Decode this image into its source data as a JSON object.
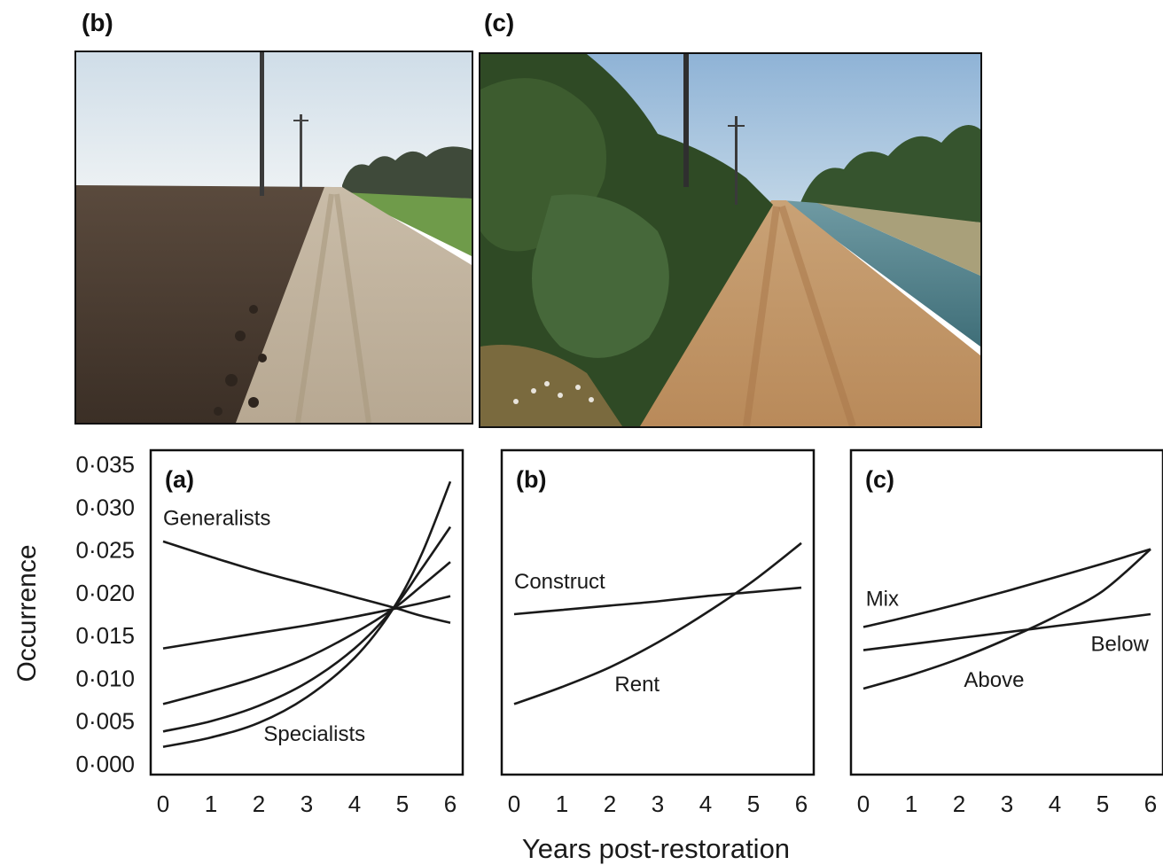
{
  "photos": [
    {
      "label": "(b)"
    },
    {
      "label": "(c)"
    }
  ],
  "ylabel": "Occurrence",
  "xlabel": "Years post-restoration",
  "colors": {
    "line": "#1a1a1a",
    "frame": "#111111"
  },
  "chart_data": [
    {
      "type": "line",
      "panel_label": "(a)",
      "xlabel": "Years post-restoration",
      "ylabel": "Occurrence",
      "xlim": [
        0,
        6
      ],
      "ylim": [
        0,
        0.035
      ],
      "xticks": [
        0,
        1,
        2,
        3,
        4,
        5,
        6
      ],
      "yticks": [
        "0·000",
        "0·005",
        "0·010",
        "0·015",
        "0·020",
        "0·025",
        "0·030",
        "0·035"
      ],
      "x": [
        0,
        1,
        2,
        3,
        4,
        4.8,
        5.4,
        6
      ],
      "series": [
        {
          "values": [
            0.026,
            0.0242,
            0.0225,
            0.021,
            0.0195,
            0.0183,
            0.0173,
            0.0165
          ]
        },
        {
          "values": [
            0.0135,
            0.0144,
            0.0153,
            0.0162,
            0.0172,
            0.0181,
            0.0188,
            0.0196
          ]
        },
        {
          "values": [
            0.007,
            0.0085,
            0.0102,
            0.0124,
            0.0153,
            0.0181,
            0.0208,
            0.0236
          ]
        },
        {
          "values": [
            0.0038,
            0.005,
            0.0068,
            0.0095,
            0.0135,
            0.0181,
            0.0228,
            0.0277
          ]
        },
        {
          "values": [
            0.002,
            0.0031,
            0.0048,
            0.0078,
            0.0124,
            0.0181,
            0.0245,
            0.033
          ]
        }
      ],
      "annotations": [
        {
          "text": "Generalists",
          "x": 0,
          "y": 0.0279
        },
        {
          "text": "Specialists",
          "x": 2.1,
          "y": 0.0027
        }
      ]
    },
    {
      "type": "line",
      "panel_label": "(b)",
      "xlim": [
        0,
        6
      ],
      "ylim": [
        0,
        0.035
      ],
      "xticks": [
        0,
        1,
        2,
        3,
        4,
        5,
        6
      ],
      "x": [
        0,
        1,
        2,
        3,
        4,
        5,
        6
      ],
      "series": [
        {
          "values": [
            0.0175,
            0.018,
            0.0185,
            0.019,
            0.0196,
            0.0201,
            0.0206
          ]
        },
        {
          "values": [
            0.007,
            0.009,
            0.0113,
            0.0142,
            0.0176,
            0.0214,
            0.0258
          ]
        }
      ],
      "annotations": [
        {
          "text": "Construct",
          "x": 0,
          "y": 0.0205
        },
        {
          "text": "Rent",
          "x": 2.1,
          "y": 0.0085
        }
      ]
    },
    {
      "type": "line",
      "panel_label": "(c)",
      "xlim": [
        0,
        6
      ],
      "ylim": [
        0,
        0.035
      ],
      "xticks": [
        0,
        1,
        2,
        3,
        4,
        5,
        6
      ],
      "x": [
        0,
        1,
        2,
        3,
        4,
        5,
        6
      ],
      "series": [
        {
          "values": [
            0.016,
            0.0173,
            0.0187,
            0.0202,
            0.0218,
            0.0234,
            0.0251
          ]
        },
        {
          "values": [
            0.0133,
            0.014,
            0.0147,
            0.0154,
            0.0161,
            0.0168,
            0.0175
          ]
        },
        {
          "values": [
            0.0088,
            0.0104,
            0.0123,
            0.0146,
            0.0172,
            0.0202,
            0.0251
          ]
        }
      ],
      "annotations": [
        {
          "text": "Mix",
          "x": 0.05,
          "y": 0.0185
        },
        {
          "text": "Below",
          "x": 4.75,
          "y": 0.0132
        },
        {
          "text": "Above",
          "x": 2.1,
          "y": 0.009
        }
      ]
    }
  ]
}
